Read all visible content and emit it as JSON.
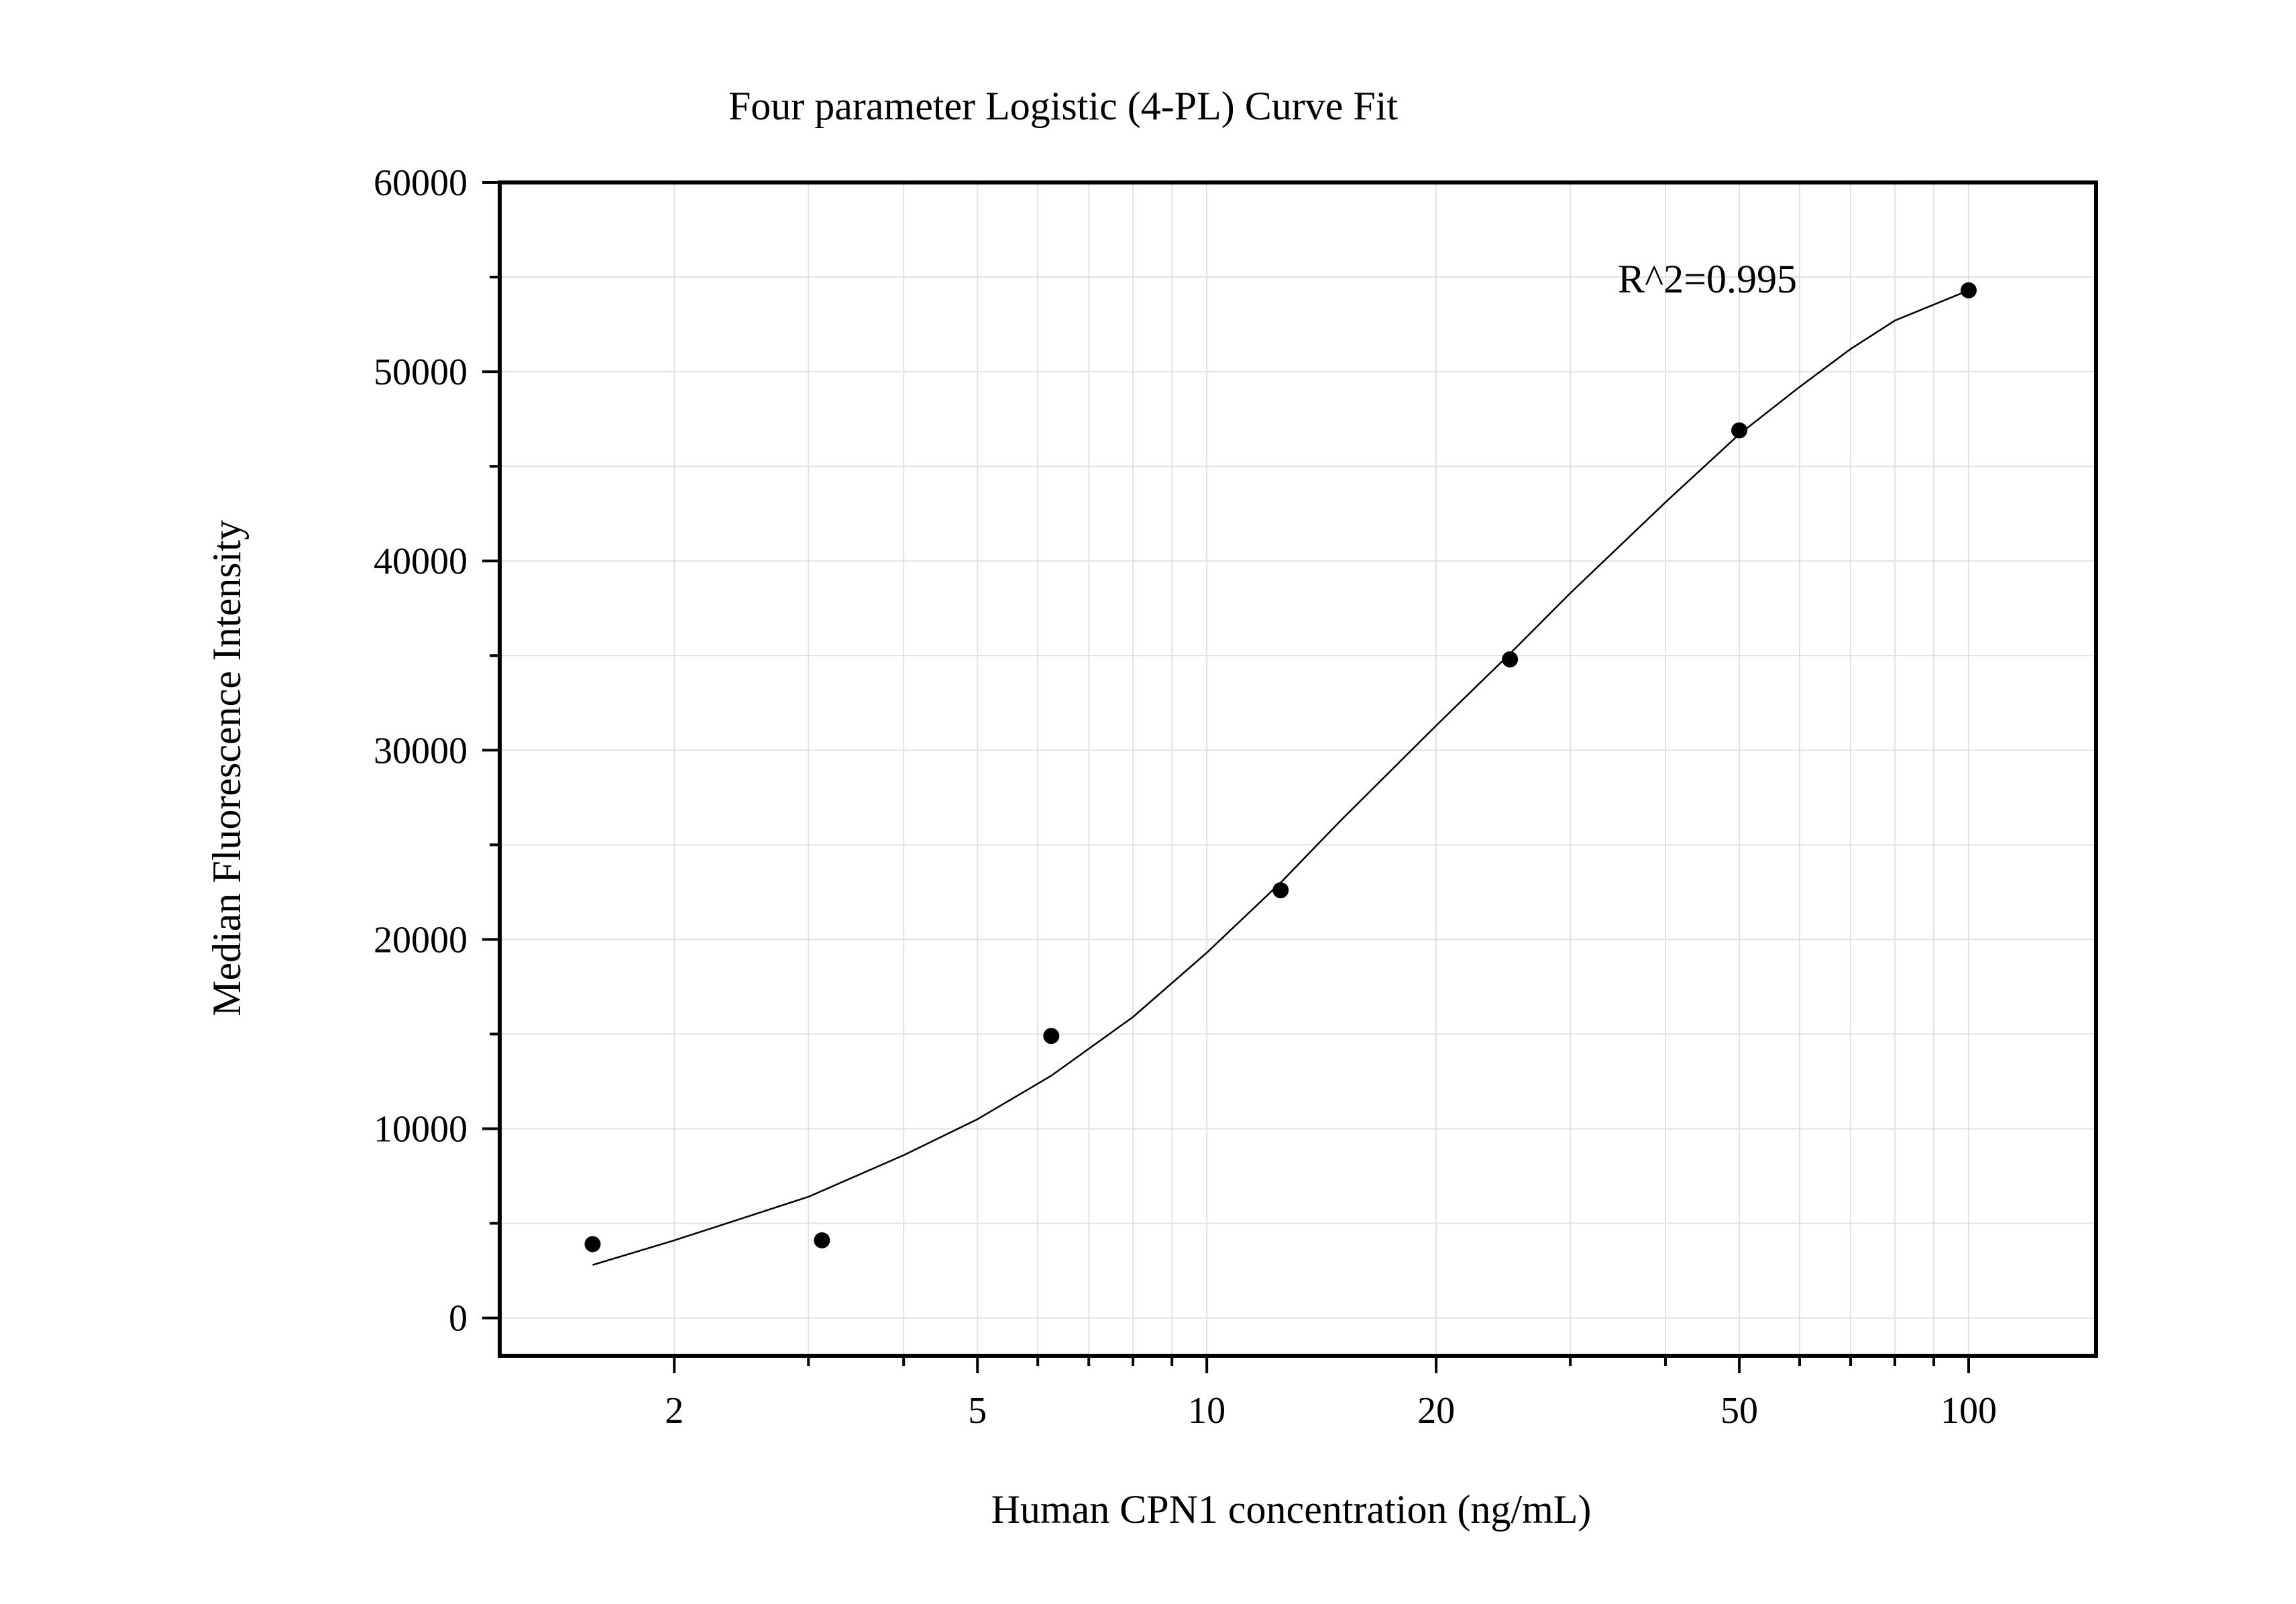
{
  "chart_data": {
    "type": "scatter",
    "title": "Four parameter Logistic (4-PL) Curve Fit",
    "xlabel": "Human CPN1 concentration (ng/mL)",
    "ylabel": "Median Fluorescence Intensity",
    "x_scale": "log",
    "xlim": [
      1.18,
      147
    ],
    "ylim": [
      -2000,
      60000
    ],
    "x_ticks": [
      2,
      5,
      10,
      20,
      50,
      100
    ],
    "x_tick_labels": [
      "2",
      "5",
      "10",
      "20",
      "50",
      "100"
    ],
    "y_ticks": [
      0,
      10000,
      20000,
      30000,
      40000,
      50000,
      60000
    ],
    "y_tick_labels": [
      "0",
      "10000",
      "20000",
      "30000",
      "40000",
      "50000",
      "60000"
    ],
    "grid": true,
    "annotation": "R^2=0.995",
    "points": {
      "x": [
        1.5625,
        3.125,
        6.25,
        12.5,
        25,
        50,
        100
      ],
      "y": [
        3900,
        4100,
        14900,
        22600,
        34800,
        46900,
        54300
      ]
    },
    "fit_curve": {
      "model": "4-PL",
      "x": [
        1.5625,
        2,
        3,
        4,
        5,
        6.25,
        8,
        10,
        12.5,
        15,
        20,
        25,
        30,
        40,
        50,
        60,
        70,
        80,
        100
      ],
      "y": [
        2800,
        4100,
        6400,
        8600,
        10500,
        12800,
        15900,
        19300,
        23000,
        26300,
        31300,
        35100,
        38300,
        43100,
        46700,
        49200,
        51200,
        52700,
        54300
      ]
    }
  }
}
